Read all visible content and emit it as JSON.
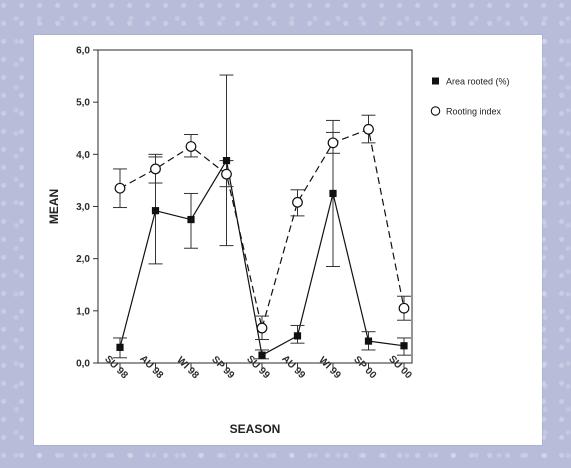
{
  "chart_data": {
    "type": "line",
    "title": "",
    "xlabel": "SEASON",
    "ylabel": "MEAN",
    "categories": [
      "SU 98",
      "AU 98",
      "WI 98",
      "SP 99",
      "SU 99",
      "AU 99",
      "WI 99",
      "SP 00",
      "SU 00"
    ],
    "ylim": [
      0,
      6
    ],
    "yticks": [
      "0,0",
      "1,0",
      "2,0",
      "3,0",
      "4,0",
      "5,0",
      "6,0"
    ],
    "grid": false,
    "legend_position": "right",
    "series": [
      {
        "name": "Area rooted (%)",
        "marker": "filled-square",
        "line": "solid",
        "color": "#111111",
        "values": [
          0.3,
          2.92,
          2.75,
          3.88,
          0.15,
          0.52,
          3.25,
          0.42,
          0.33
        ],
        "err_low": [
          0.1,
          1.9,
          2.2,
          2.25,
          0.08,
          0.38,
          1.85,
          0.25,
          0.15
        ],
        "err_high": [
          0.48,
          3.95,
          3.25,
          5.52,
          0.25,
          0.72,
          4.65,
          0.6,
          0.48
        ]
      },
      {
        "name": "Rooting index",
        "marker": "open-circle",
        "line": "dashed",
        "color": "#111111",
        "values": [
          3.35,
          3.72,
          4.15,
          3.62,
          0.67,
          3.08,
          4.22,
          4.48,
          1.05
        ],
        "err_low": [
          2.98,
          3.45,
          3.95,
          3.38,
          0.45,
          2.82,
          4.02,
          4.22,
          0.82
        ],
        "err_high": [
          3.72,
          4.0,
          4.38,
          3.88,
          0.9,
          3.32,
          4.42,
          4.75,
          1.28
        ]
      }
    ]
  }
}
